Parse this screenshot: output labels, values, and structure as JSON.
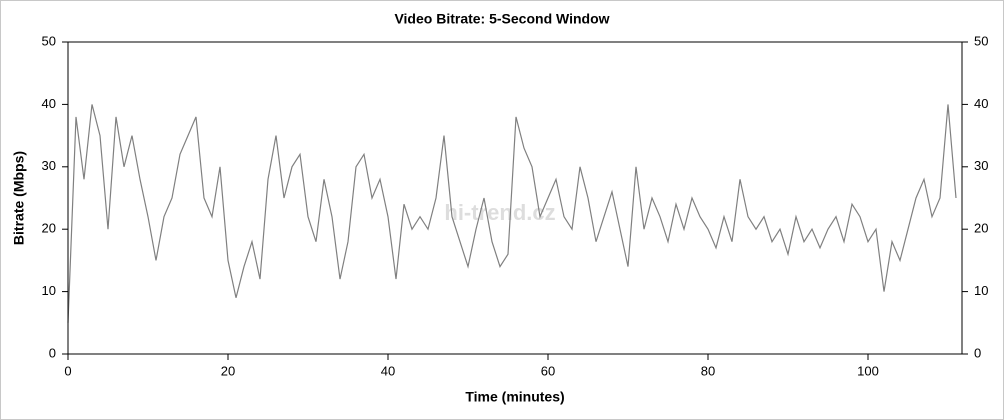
{
  "chart_data": {
    "type": "line",
    "title": "Video Bitrate: 5-Second Window",
    "x_label": "Time (minutes)",
    "y_label": "Bitrate (Mbps)",
    "watermark": "hi-trend.cz",
    "x": [
      0,
      1,
      2,
      3,
      4,
      5,
      6,
      7,
      8,
      9,
      10,
      11,
      12,
      13,
      14,
      15,
      16,
      17,
      18,
      19,
      20,
      21,
      22,
      23,
      24,
      25,
      26,
      27,
      28,
      29,
      30,
      31,
      32,
      33,
      34,
      35,
      36,
      37,
      38,
      39,
      40,
      41,
      42,
      43,
      44,
      45,
      46,
      47,
      48,
      49,
      50,
      51,
      52,
      53,
      54,
      55,
      56,
      57,
      58,
      59,
      60,
      61,
      62,
      63,
      64,
      65,
      66,
      67,
      68,
      69,
      70,
      71,
      72,
      73,
      74,
      75,
      76,
      77,
      78,
      79,
      80,
      81,
      82,
      83,
      84,
      85,
      86,
      87,
      88,
      89,
      90,
      91,
      92,
      93,
      94,
      95,
      96,
      97,
      98,
      99,
      100,
      101,
      102,
      103,
      104,
      105,
      106,
      107,
      108,
      109,
      110,
      111
    ],
    "values": [
      5,
      38,
      28,
      40,
      35,
      20,
      38,
      30,
      35,
      28,
      22,
      15,
      22,
      25,
      32,
      35,
      38,
      25,
      22,
      30,
      15,
      9,
      14,
      18,
      12,
      28,
      35,
      25,
      30,
      32,
      22,
      18,
      28,
      22,
      12,
      18,
      30,
      32,
      25,
      28,
      22,
      12,
      24,
      20,
      22,
      20,
      25,
      35,
      22,
      18,
      14,
      20,
      25,
      18,
      14,
      16,
      38,
      33,
      30,
      22,
      25,
      28,
      22,
      20,
      30,
      25,
      18,
      22,
      26,
      20,
      14,
      30,
      20,
      25,
      22,
      18,
      24,
      20,
      25,
      22,
      20,
      17,
      22,
      18,
      28,
      22,
      20,
      22,
      18,
      20,
      16,
      22,
      18,
      20,
      17,
      20,
      22,
      18,
      24,
      22,
      18,
      20,
      10,
      18,
      15,
      20,
      25,
      28,
      22,
      25,
      40,
      25
    ],
    "color": "#808080",
    "xlim": [
      0,
      111.75
    ],
    "xticks": [
      0,
      20,
      40,
      60,
      80,
      100
    ],
    "ylim": [
      0,
      50
    ],
    "yticks": [
      0,
      10,
      20,
      30,
      40,
      50
    ],
    "right_axis": true
  }
}
